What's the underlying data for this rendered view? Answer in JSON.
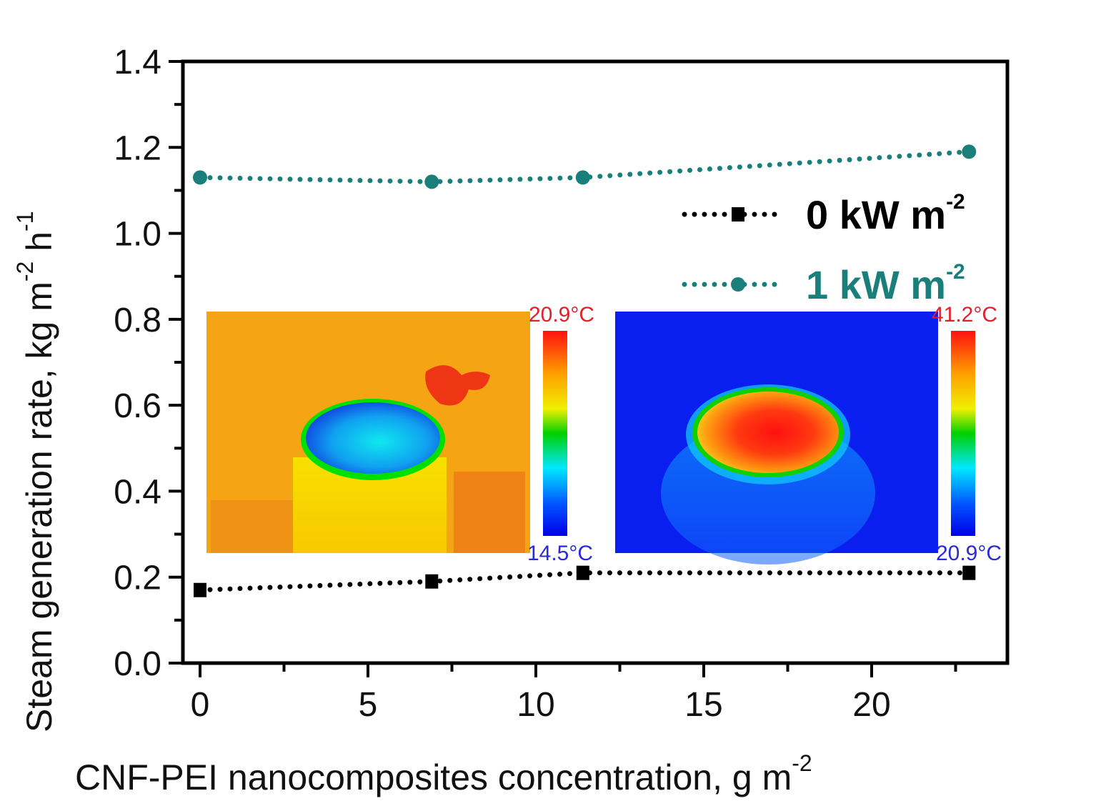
{
  "chart_data": {
    "type": "scatter",
    "title": "",
    "xlabel": "CNF-PEI nanocomposites concentration, g m",
    "xlabel_sup": "-2",
    "ylabel": "Steam generation rate, kg m",
    "ylabel_sup1": "-2",
    "ylabel_mid": " h",
    "ylabel_sup2": "-1",
    "xlim": [
      -1,
      24.5
    ],
    "ylim": [
      0.0,
      1.4
    ],
    "xticks": [
      0,
      5,
      10,
      15,
      20
    ],
    "xtick_labels": [
      "0",
      "5",
      "10",
      "15",
      "20"
    ],
    "yticks": [
      0.0,
      0.2,
      0.4,
      0.6,
      0.8,
      1.0,
      1.2,
      1.4
    ],
    "ytick_labels": [
      "0.0",
      "0.2",
      "0.4",
      "0.6",
      "0.8",
      "1.0",
      "1.2",
      "1.4"
    ],
    "grid": false,
    "legend_position": "upper-right",
    "series": [
      {
        "name": "0 kW m",
        "name_sup": "-2",
        "color": "#000000",
        "marker": "square",
        "line": "dotted",
        "x": [
          0,
          6.9,
          11.4,
          22.9
        ],
        "y": [
          0.17,
          0.19,
          0.21,
          0.21
        ]
      },
      {
        "name": "1 kW m",
        "name_sup": "-2",
        "color": "#1a7f7a",
        "marker": "circle",
        "line": "dotted",
        "x": [
          0,
          6.9,
          11.4,
          22.9
        ],
        "y": [
          1.13,
          1.12,
          1.13,
          1.19
        ]
      }
    ],
    "insets": [
      {
        "name": "thermal-image-dark",
        "colorbar_max": "20.9°C",
        "colorbar_min": "14.5°C",
        "max_color": "#e0202a",
        "min_color": "#2a2ad8"
      },
      {
        "name": "thermal-image-illuminated",
        "colorbar_max": "41.2°C",
        "colorbar_min": "20.9°C",
        "max_color": "#e0202a",
        "min_color": "#2a2ad8"
      }
    ]
  }
}
